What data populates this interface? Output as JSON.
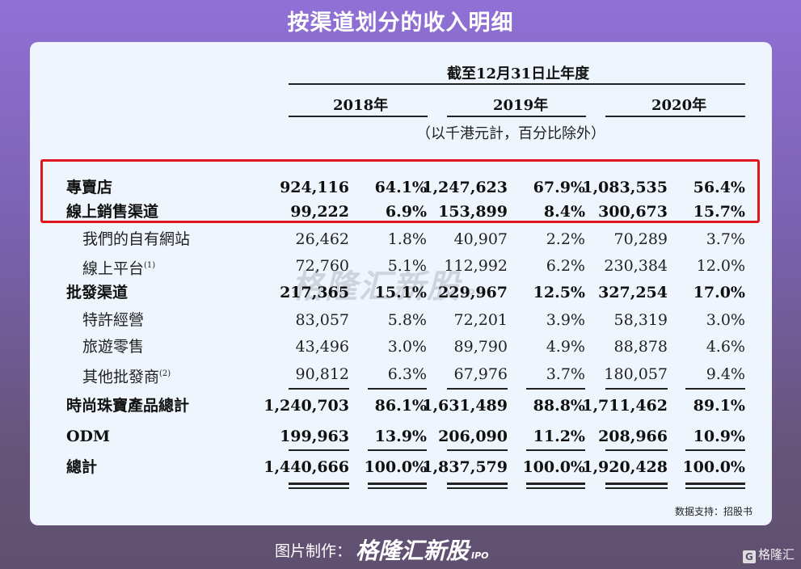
{
  "title": "按渠道划分的收入明细",
  "table": {
    "period_header": "截至12月31日止年度",
    "years": [
      "2018年",
      "2019年",
      "2020年"
    ],
    "unit_note": "（以千港元計，百分比除外）",
    "rows": [
      {
        "label": "專賣店",
        "bold": true,
        "values": [
          "924,116",
          "64.1%",
          "1,247,623",
          "67.9%",
          "1,083,535",
          "56.4%"
        ]
      },
      {
        "label": "線上銷售渠道",
        "bold": true,
        "values": [
          "99,222",
          "6.9%",
          "153,899",
          "8.4%",
          "300,673",
          "15.7%"
        ]
      },
      {
        "label": "我們的自有網站",
        "indent": true,
        "values": [
          "26,462",
          "1.8%",
          "40,907",
          "2.2%",
          "70,289",
          "3.7%"
        ]
      },
      {
        "label": "線上平台",
        "note": "(1)",
        "indent": true,
        "values": [
          "72,760",
          "5.1%",
          "112,992",
          "6.2%",
          "230,384",
          "12.0%"
        ]
      },
      {
        "label": "批發渠道",
        "bold": true,
        "values": [
          "217,365",
          "15.1%",
          "229,967",
          "12.5%",
          "327,254",
          "17.0%"
        ]
      },
      {
        "label": "特許經營",
        "indent": true,
        "values": [
          "83,057",
          "5.8%",
          "72,201",
          "3.9%",
          "58,319",
          "3.0%"
        ]
      },
      {
        "label": "旅遊零售",
        "indent": true,
        "values": [
          "43,496",
          "3.0%",
          "89,790",
          "4.9%",
          "88,878",
          "4.6%"
        ]
      },
      {
        "label": "其他批發商",
        "note": "(2)",
        "indent": true,
        "values": [
          "90,812",
          "6.3%",
          "67,976",
          "3.7%",
          "180,057",
          "9.4%"
        ]
      },
      {
        "label": "時尚珠寶產品總計",
        "bold": true,
        "values": [
          "1,240,703",
          "86.1%",
          "1,631,489",
          "88.8%",
          "1,711,462",
          "89.1%"
        ]
      },
      {
        "label": "ODM",
        "bold": true,
        "values": [
          "199,963",
          "13.9%",
          "206,090",
          "11.2%",
          "208,966",
          "10.9%"
        ]
      },
      {
        "label": "總計",
        "bold": true,
        "values": [
          "1,440,666",
          "100.0%",
          "1,837,579",
          "100.0%",
          "1,920,428",
          "100.0%"
        ]
      }
    ],
    "highlight_color": "#e0141c"
  },
  "watermark": {
    "text": "格隆汇新股",
    "sub": "IPO"
  },
  "source": "数据支持：招股书",
  "footer": {
    "label": "图片制作：",
    "brand": "格隆汇新股",
    "brand_sub": "IPO",
    "corner_logo": "格隆汇",
    "corner_icon": "G"
  }
}
